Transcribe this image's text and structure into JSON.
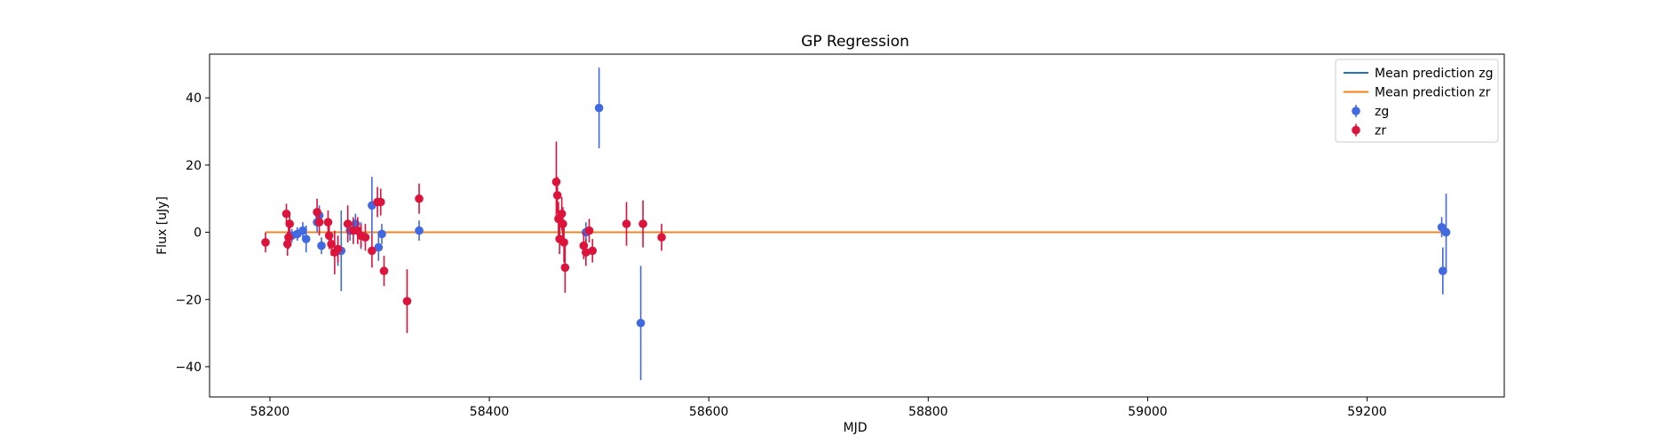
{
  "chart_data": {
    "type": "scatter",
    "title": "GP Regression",
    "xlabel": "MJD",
    "ylabel": "Flux [uJy]",
    "xlim": [
      58145,
      59325
    ],
    "ylim": [
      -49,
      53
    ],
    "xticks": [
      58200,
      58400,
      58600,
      58800,
      59000,
      59200
    ],
    "yticks": [
      -40,
      -20,
      0,
      20,
      40
    ],
    "legend_position": "top-right",
    "grid": false,
    "series": [
      {
        "name": "Mean prediction zg",
        "kind": "line",
        "color": "#1f77b4",
        "x": [
          58196,
          59270
        ],
        "y": [
          0,
          0
        ]
      },
      {
        "name": "Mean prediction zr",
        "kind": "line",
        "color": "#ff7f0e",
        "x": [
          58196,
          59270
        ],
        "y": [
          0,
          0
        ]
      },
      {
        "name": "zg",
        "kind": "errorbar",
        "color": "#4169e1",
        "x": [
          58220,
          58225,
          58230,
          58233,
          58243,
          58245,
          58247,
          58262,
          58265,
          58273,
          58278,
          58283,
          58293,
          58299,
          58302,
          58336,
          58488,
          58500,
          58538,
          59268,
          59269,
          59272
        ],
        "y": [
          -1,
          -0.5,
          0.5,
          -2,
          3,
          5,
          -4,
          -5.5,
          -5.5,
          0.5,
          2.5,
          -1,
          8,
          -4.5,
          -0.5,
          0.5,
          0,
          37,
          -27,
          1.5,
          -11.5,
          0
        ],
        "err": [
          2,
          2,
          2.5,
          4,
          3,
          3,
          2.5,
          4.5,
          12,
          3,
          3,
          4,
          8.5,
          4,
          3,
          3,
          3,
          12,
          17,
          3,
          7,
          11.5
        ]
      },
      {
        "name": "zr",
        "kind": "errorbar",
        "color": "#dc143c",
        "x": [
          58196,
          58215,
          58216,
          58217,
          58218,
          58243,
          58245,
          58253,
          58254,
          58256,
          58259,
          58262,
          58271,
          58276,
          58280,
          58283,
          58287,
          58293,
          58298,
          58301,
          58304,
          58325,
          58336,
          58461,
          58462,
          58463,
          58464,
          58466,
          58467,
          58468,
          58469,
          58486,
          58488,
          58491,
          58494,
          58525,
          58540,
          58557
        ],
        "y": [
          -3,
          5.5,
          -3.5,
          -1.5,
          2.5,
          6,
          3,
          3,
          -1,
          -3.5,
          -6,
          -5,
          2.5,
          0.5,
          0.5,
          -1,
          -1.5,
          -5.5,
          9,
          9,
          -11.5,
          -20.5,
          10,
          15,
          11,
          4,
          -2,
          5.5,
          2.5,
          -3,
          -10.5,
          -4,
          -6,
          0.5,
          -5.5,
          2.5,
          2.5,
          -1.5
        ],
        "err": [
          3,
          3,
          3.5,
          3.5,
          3,
          4,
          4,
          3.5,
          4,
          3.5,
          6.5,
          4,
          5.5,
          4,
          4,
          3.5,
          4,
          5,
          4.5,
          4,
          4.5,
          9.5,
          4.5,
          12,
          5.5,
          5,
          4.5,
          5,
          5,
          6,
          7.5,
          4,
          4,
          3.5,
          3.5,
          6.5,
          7,
          4
        ]
      }
    ]
  }
}
